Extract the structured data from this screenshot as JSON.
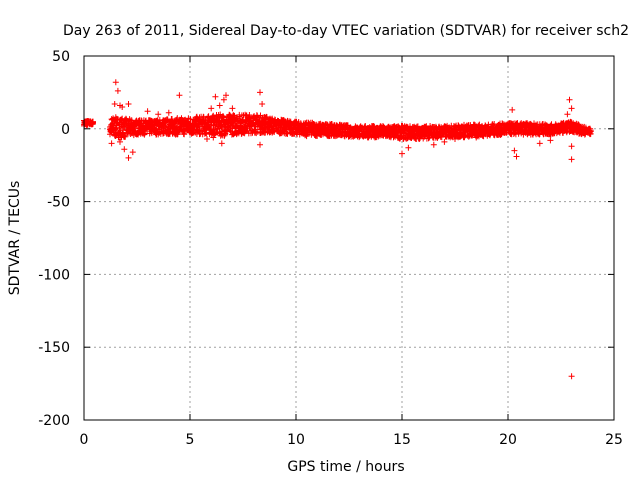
{
  "chart_data": {
    "type": "scatter",
    "title": "Day 263 of 2011, Sidereal Day-to-day VTEC variation (SDTVAR) for receiver sch2",
    "xlabel": "GPS time / hours",
    "ylabel": "SDTVAR / TECUs",
    "xlim": [
      0,
      25
    ],
    "ylim": [
      -200,
      50
    ],
    "xticks": [
      0,
      5,
      10,
      15,
      20,
      25
    ],
    "yticks": [
      -200,
      -150,
      -100,
      -50,
      0,
      50
    ],
    "grid": true,
    "marker": "+",
    "color": "#ff0000",
    "series": [
      {
        "name": "SDTVAR",
        "band": {
          "x": [
            0.0,
            0.4,
            1.2,
            1.5,
            2.0,
            2.5,
            3.0,
            4.0,
            5.0,
            6.0,
            6.5,
            7.0,
            8.0,
            8.5,
            9.0,
            10.0,
            11.0,
            12.0,
            13.0,
            14.0,
            15.0,
            16.0,
            17.0,
            18.0,
            19.0,
            20.0,
            21.0,
            22.0,
            23.0,
            23.5,
            23.9
          ],
          "lo": [
            2,
            3,
            -6,
            -6,
            -6,
            -4,
            -4,
            -4,
            -4,
            -4,
            -5,
            -4,
            -3,
            -3,
            -3,
            -4,
            -5,
            -5,
            -6,
            -6,
            -7,
            -7,
            -6,
            -6,
            -5,
            -4,
            -4,
            -4,
            -2,
            -4,
            -4
          ],
          "hi": [
            6,
            5,
            8,
            8,
            7,
            6,
            6,
            7,
            8,
            9,
            10,
            10,
            10,
            9,
            7,
            5,
            4,
            3,
            2,
            2,
            2,
            2,
            2,
            3,
            3,
            4,
            4,
            3,
            5,
            2,
            0
          ]
        },
        "outliers": [
          [
            1.5,
            32
          ],
          [
            1.6,
            26
          ],
          [
            1.45,
            17
          ],
          [
            1.7,
            16
          ],
          [
            1.8,
            15
          ],
          [
            2.1,
            17
          ],
          [
            1.9,
            -14
          ],
          [
            2.1,
            -20
          ],
          [
            2.3,
            -16
          ],
          [
            1.7,
            -9
          ],
          [
            4.5,
            23
          ],
          [
            6.2,
            22
          ],
          [
            6.6,
            20
          ],
          [
            6.7,
            23
          ],
          [
            8.3,
            25
          ],
          [
            8.4,
            17
          ],
          [
            8.3,
            -11
          ],
          [
            6.1,
            -6
          ],
          [
            6.5,
            -10
          ],
          [
            5.8,
            -7
          ],
          [
            6.4,
            16
          ],
          [
            6.0,
            14
          ],
          [
            7.0,
            14
          ],
          [
            15.0,
            -17
          ],
          [
            15.3,
            -13
          ],
          [
            16.5,
            -11
          ],
          [
            17.0,
            -9
          ],
          [
            17.5,
            -7
          ],
          [
            18.5,
            -6
          ],
          [
            20.2,
            13
          ],
          [
            20.3,
            -15
          ],
          [
            20.4,
            -19
          ],
          [
            22.0,
            -8
          ],
          [
            22.9,
            20
          ],
          [
            23.0,
            14
          ],
          [
            23.0,
            -12
          ],
          [
            23.0,
            -21
          ],
          [
            22.8,
            10
          ],
          [
            21.5,
            -10
          ],
          [
            10.5,
            -5
          ],
          [
            12.0,
            -4
          ],
          [
            3.0,
            12
          ],
          [
            4.0,
            11
          ],
          [
            3.5,
            10
          ],
          [
            1.3,
            -10
          ],
          [
            23.0,
            -170
          ]
        ]
      }
    ]
  }
}
